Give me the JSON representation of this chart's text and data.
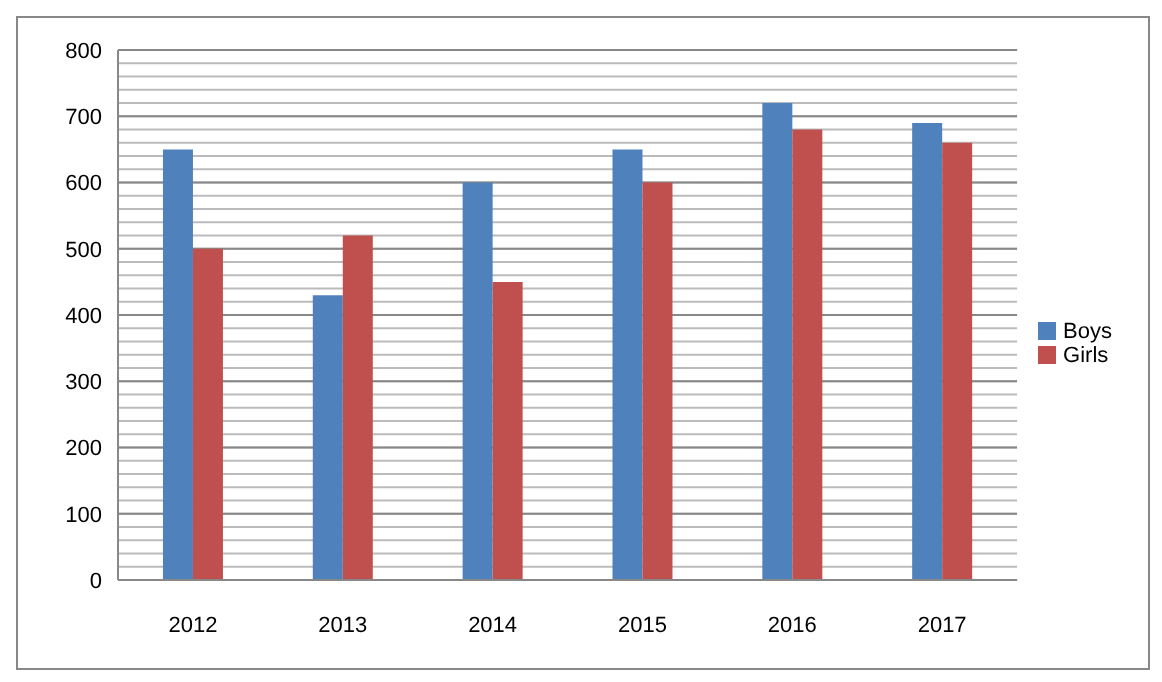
{
  "chart_data": {
    "type": "bar",
    "categories": [
      "2012",
      "2013",
      "2014",
      "2015",
      "2016",
      "2017"
    ],
    "series": [
      {
        "name": "Boys",
        "color": "#4f81bd",
        "values": [
          650,
          430,
          600,
          650,
          720,
          690
        ]
      },
      {
        "name": "Girls",
        "color": "#c0504d",
        "values": [
          500,
          520,
          450,
          600,
          680,
          660
        ]
      }
    ],
    "ylim": [
      0,
      800
    ],
    "yticks": [
      0,
      {
        "value": 20,
        "label": null
      },
      {
        "value": 40,
        "label": null
      },
      {
        "value": 60,
        "label": null
      },
      {
        "value": 80,
        "label": null
      },
      100,
      {
        "value": 120,
        "label": null
      },
      {
        "value": 140,
        "label": null
      },
      {
        "value": 160,
        "label": null
      },
      {
        "value": 180,
        "label": null
      },
      200,
      {
        "value": 220,
        "label": null
      },
      {
        "value": 240,
        "label": null
      },
      {
        "value": 260,
        "label": null
      },
      {
        "value": 280,
        "label": null
      },
      300,
      {
        "value": 320,
        "label": null
      },
      {
        "value": 340,
        "label": null
      },
      {
        "value": 360,
        "label": null
      },
      {
        "value": 380,
        "label": null
      },
      400,
      {
        "value": 420,
        "label": null
      },
      {
        "value": 440,
        "label": null
      },
      {
        "value": 460,
        "label": null
      },
      {
        "value": 480,
        "label": null
      },
      500,
      {
        "value": 520,
        "label": null
      },
      {
        "value": 540,
        "label": null
      },
      {
        "value": 560,
        "label": null
      },
      {
        "value": 580,
        "label": null
      },
      600,
      {
        "value": 620,
        "label": null
      },
      {
        "value": 640,
        "label": null
      },
      {
        "value": 660,
        "label": null
      },
      {
        "value": 680,
        "label": null
      },
      700,
      {
        "value": 720,
        "label": null
      },
      {
        "value": 740,
        "label": null
      },
      {
        "value": 760,
        "label": null
      },
      {
        "value": 780,
        "label": null
      },
      800
    ],
    "grid": "y",
    "legend": "right"
  }
}
